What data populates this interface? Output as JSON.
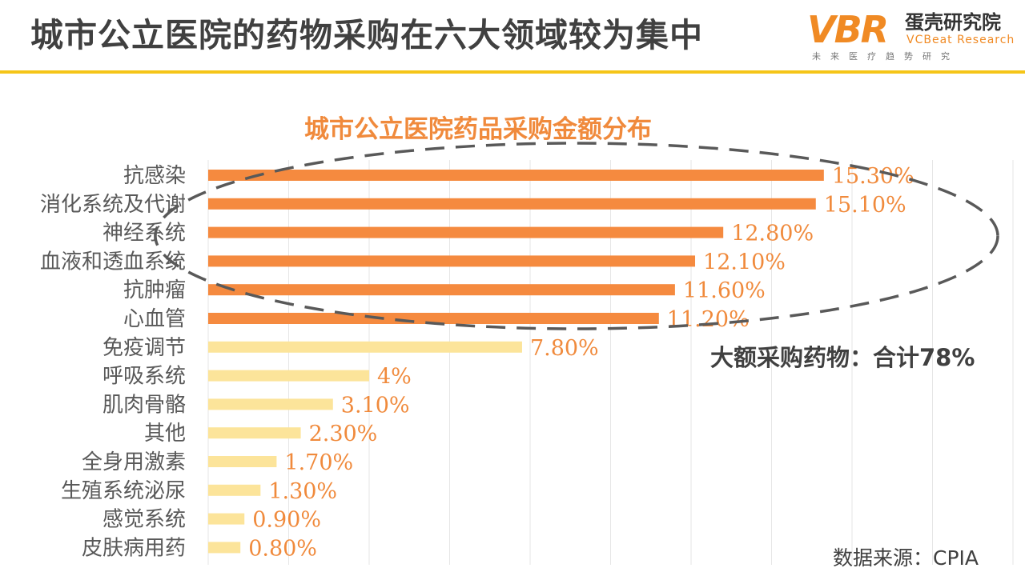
{
  "page": {
    "title": "城市公立医院的药物采购在六大领域较为集中",
    "logo": {
      "mark": "VBR",
      "name_cn": "蛋壳研究院",
      "name_en": "VCBeat Research",
      "tagline": "未来医疗趋势研究"
    },
    "annotation": "大额采购药物：合计78%",
    "source": "数据来源：CPIA"
  },
  "colors": {
    "highlight_bar": "#f58a3f",
    "normal_bar": "#fce49a",
    "value_label": "#f08a3c",
    "title_rule": "#f5c518",
    "ellipse": "#595959"
  },
  "chart_data": {
    "type": "bar",
    "orientation": "horizontal",
    "title": "城市公立医院药品采购金额分布",
    "xlabel": "",
    "ylabel": "",
    "xlim": [
      0,
      20
    ],
    "grid": true,
    "categories": [
      "抗感染",
      "消化系统及代谢",
      "神经系统",
      "血液和透血系统",
      "抗肿瘤",
      "心血管",
      "免疫调节",
      "呼吸系统",
      "肌肉骨骼",
      "其他",
      "全身用激素",
      "生殖系统泌尿",
      "感觉系统",
      "皮肤病用药"
    ],
    "values": [
      15.3,
      15.1,
      12.8,
      12.1,
      11.6,
      11.2,
      7.8,
      4,
      3.1,
      2.3,
      1.7,
      1.3,
      0.9,
      0.8
    ],
    "value_labels": [
      "15.30%",
      "15.10%",
      "12.80%",
      "12.10%",
      "11.60%",
      "11.20%",
      "7.80%",
      "4%",
      "3.10%",
      "2.30%",
      "1.70%",
      "1.30%",
      "0.90%",
      "0.80%"
    ],
    "highlight_count": 6
  }
}
